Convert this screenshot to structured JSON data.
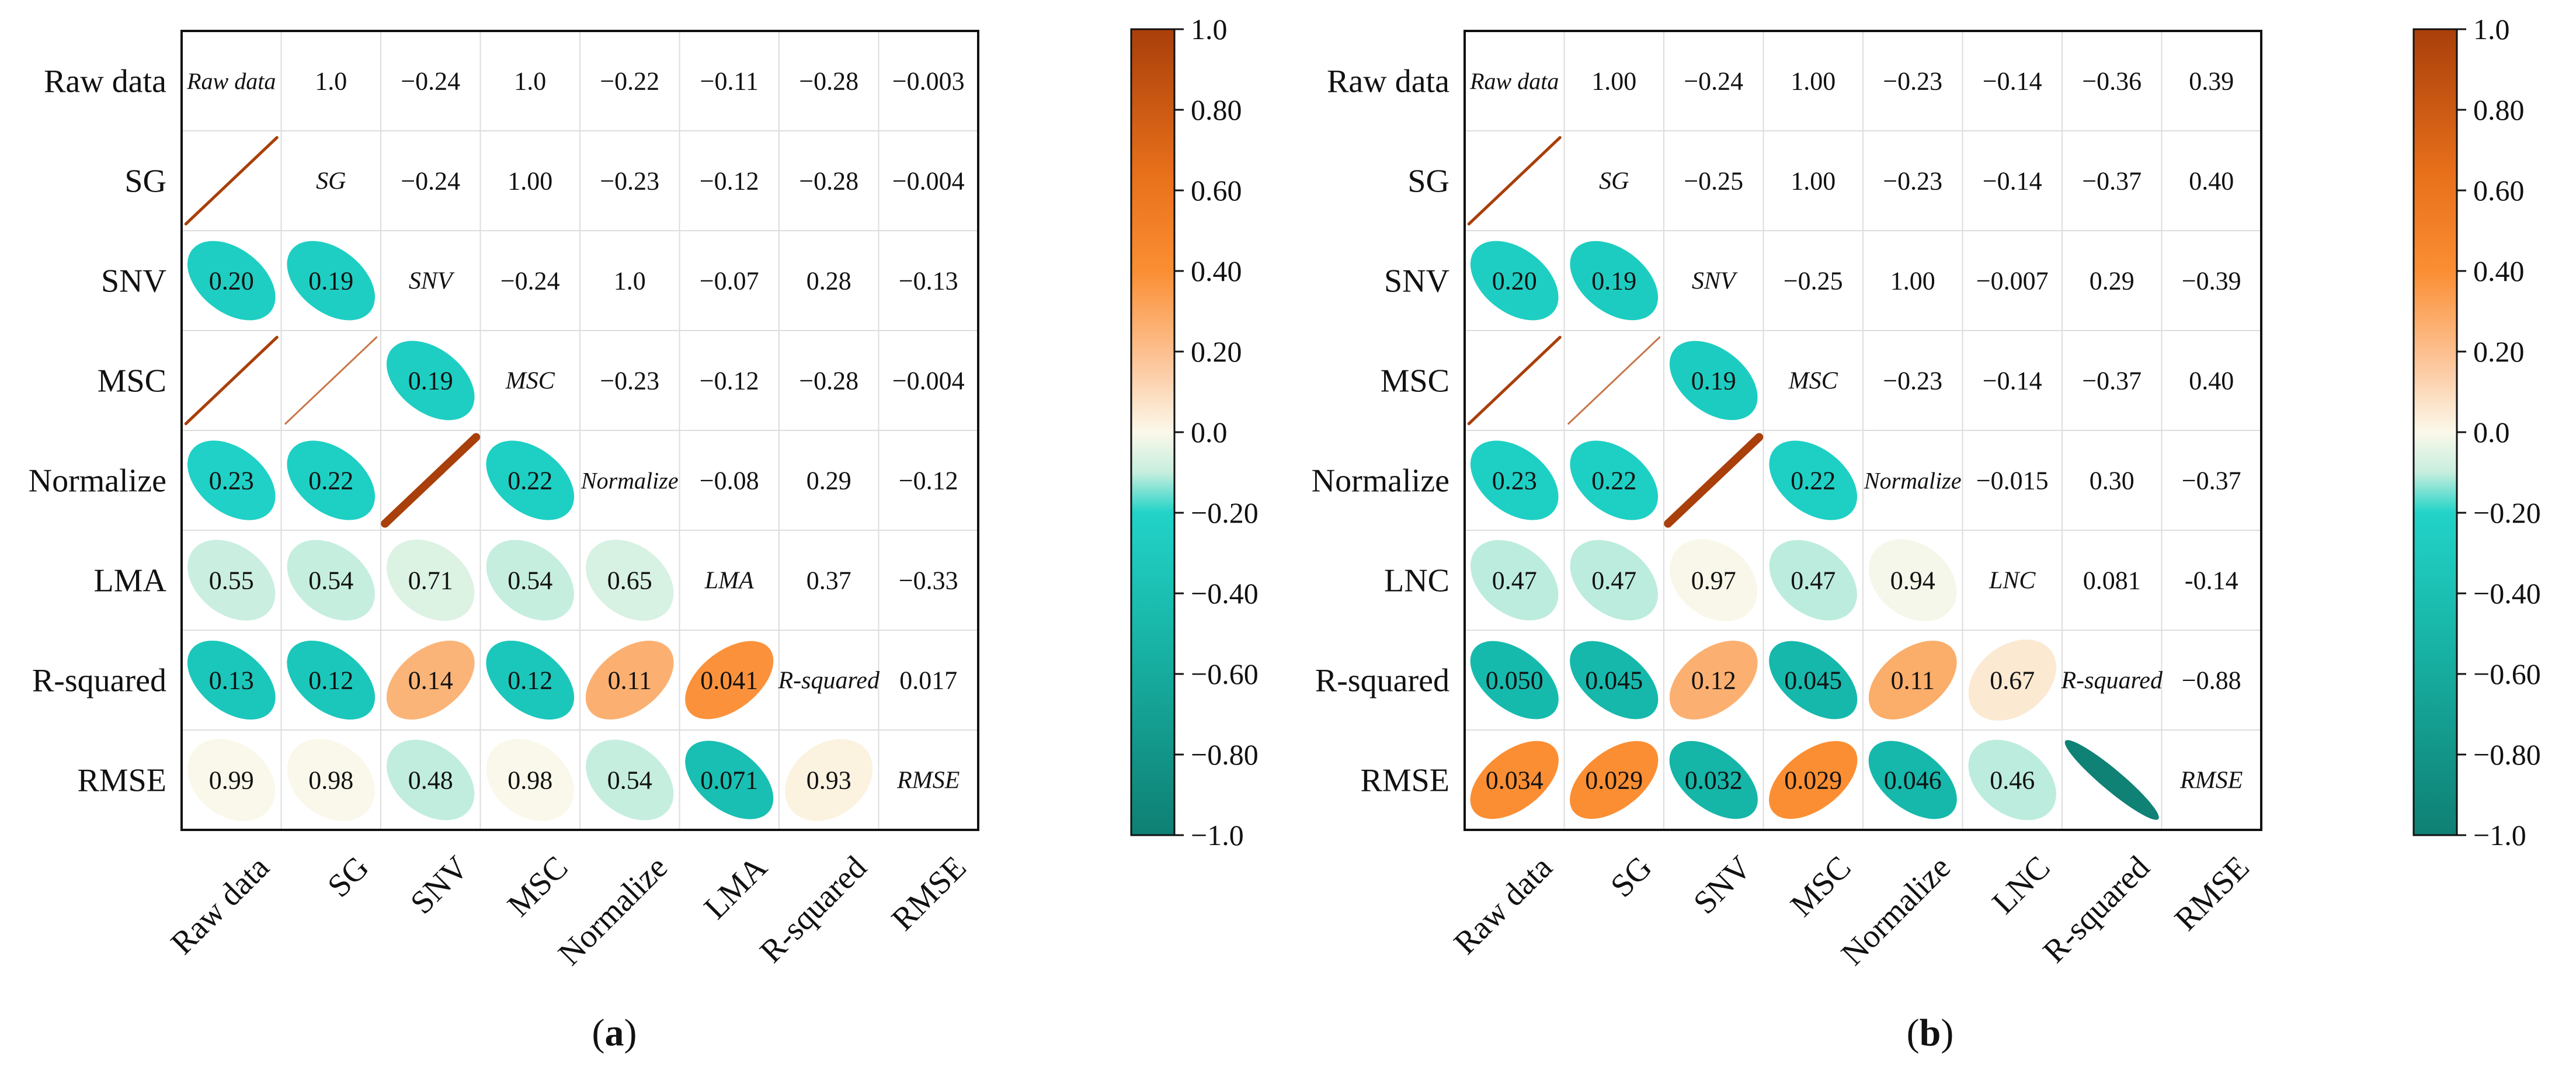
{
  "colors": {
    "neg_strong": "#0f7f73",
    "neg_mid": "#1fd1c6",
    "neg_light": "#b8ebdc",
    "neutral": "#fbf8ea",
    "pos_light": "#fbd2ae",
    "pos_mid": "#fb8e33",
    "pos_strong": "#a93f0a",
    "grid": "#dddddd",
    "frame": "#111111"
  },
  "chart_data": [
    {
      "type": "heatmap",
      "title": "",
      "caption_letter": "a",
      "labels": [
        "Raw data",
        "SG",
        "SNV",
        "MSC",
        "Normalize",
        "LMA",
        "R-squared",
        "RMSE"
      ],
      "colorbar": {
        "range": [
          -1.0,
          1.0
        ],
        "ticks": [
          "1.0",
          "0.80",
          "0.60",
          "0.40",
          "0.20",
          "0.0",
          "−0.20",
          "−0.40",
          "−0.60",
          "−0.80",
          "−1.0"
        ]
      },
      "diagonal": [
        "Raw data",
        "SG",
        "SNV",
        "MSC",
        "Normalize",
        "LMA",
        "R-squared",
        "RMSE"
      ],
      "upper": [
        [
          "1.0",
          "−0.24",
          "1.0",
          "−0.22",
          "−0.11",
          "−0.28",
          "−0.003"
        ],
        [
          "−0.24",
          "1.00",
          "−0.23",
          "−0.12",
          "−0.28",
          "−0.004"
        ],
        [
          "−0.24",
          "1.0",
          "−0.07",
          "0.28",
          "−0.13"
        ],
        [
          "−0.23",
          "−0.12",
          "−0.28",
          "−0.004"
        ],
        [
          "−0.08",
          "0.29",
          "−0.12"
        ],
        [
          "0.37",
          "−0.33"
        ],
        [
          "0.017"
        ]
      ],
      "lower": [
        [
          {
            "shape": "line",
            "value": 1.0
          }
        ],
        [
          {
            "r": 0.2,
            "label": "0.20",
            "value": -0.24
          },
          {
            "r": 0.19,
            "label": "0.19",
            "value": -0.24
          }
        ],
        [
          {
            "shape": "line",
            "value": 1.0
          },
          {
            "shape": "line",
            "value": 1.0,
            "thin": true
          },
          {
            "r": 0.19,
            "label": "0.19",
            "value": -0.24
          }
        ],
        [
          {
            "r": 0.23,
            "label": "0.23",
            "value": -0.22
          },
          {
            "r": 0.22,
            "label": "0.22",
            "value": -0.23
          },
          {
            "shape": "line",
            "value": 1.0,
            "thick": true
          },
          {
            "r": 0.22,
            "label": "0.22",
            "value": -0.23
          }
        ],
        [
          {
            "r": 0.55,
            "label": "0.55",
            "value": -0.11
          },
          {
            "r": 0.54,
            "label": "0.54",
            "value": -0.12
          },
          {
            "r": 0.71,
            "label": "0.71",
            "value": -0.07
          },
          {
            "r": 0.54,
            "label": "0.54",
            "value": -0.12
          },
          {
            "r": 0.65,
            "label": "0.65",
            "value": -0.08
          }
        ],
        [
          {
            "r": 0.13,
            "label": "0.13",
            "value": -0.28
          },
          {
            "r": 0.12,
            "label": "0.12",
            "value": -0.28
          },
          {
            "r": 0.14,
            "label": "0.14",
            "value": 0.28
          },
          {
            "r": 0.12,
            "label": "0.12",
            "value": -0.28
          },
          {
            "r": 0.11,
            "label": "0.11",
            "value": 0.29
          },
          {
            "r": 0.041,
            "label": "0.041",
            "value": 0.37
          }
        ],
        [
          {
            "r": 0.99,
            "label": "0.99",
            "value": -0.003
          },
          {
            "r": 0.98,
            "label": "0.98",
            "value": -0.004
          },
          {
            "r": 0.48,
            "label": "0.48",
            "value": -0.13
          },
          {
            "r": 0.98,
            "label": "0.98",
            "value": -0.004
          },
          {
            "r": 0.54,
            "label": "0.54",
            "value": -0.12
          },
          {
            "r": 0.071,
            "label": "0.071",
            "value": -0.33
          },
          {
            "r": 0.93,
            "label": "0.93",
            "value": 0.017
          }
        ]
      ]
    },
    {
      "type": "heatmap",
      "title": "",
      "caption_letter": "b",
      "labels": [
        "Raw data",
        "SG",
        "SNV",
        "MSC",
        "Normalize",
        "LNC",
        "R-squared",
        "RMSE"
      ],
      "colorbar": {
        "range": [
          -1.0,
          1.0
        ],
        "ticks": [
          "1.0",
          "0.80",
          "0.60",
          "0.40",
          "0.20",
          "0.0",
          "−0.20",
          "−0.40",
          "−0.60",
          "−0.80",
          "−1.0"
        ]
      },
      "diagonal": [
        "Raw data",
        "SG",
        "SNV",
        "MSC",
        "Normalize",
        "LNC",
        "R-squared",
        "RMSE"
      ],
      "upper": [
        [
          "1.00",
          "−0.24",
          "1.00",
          "−0.23",
          "−0.14",
          "−0.36",
          "0.39"
        ],
        [
          "−0.25",
          "1.00",
          "−0.23",
          "−0.14",
          "−0.37",
          "0.40"
        ],
        [
          "−0.25",
          "1.00",
          "−0.007",
          "0.29",
          "−0.39"
        ],
        [
          "−0.23",
          "−0.14",
          "−0.37",
          "0.40"
        ],
        [
          "−0.015",
          "0.30",
          "−0.37"
        ],
        [
          "0.081",
          "-0.14"
        ],
        [
          "−0.88"
        ]
      ],
      "lower": [
        [
          {
            "shape": "line",
            "value": 1.0
          }
        ],
        [
          {
            "r": 0.2,
            "label": "0.20",
            "value": -0.24
          },
          {
            "r": 0.19,
            "label": "0.19",
            "value": -0.25
          }
        ],
        [
          {
            "shape": "line",
            "value": 1.0
          },
          {
            "shape": "line",
            "value": 1.0,
            "thin": true
          },
          {
            "r": 0.19,
            "label": "0.19",
            "value": -0.25
          }
        ],
        [
          {
            "r": 0.23,
            "label": "0.23",
            "value": -0.23
          },
          {
            "r": 0.22,
            "label": "0.22",
            "value": -0.23
          },
          {
            "shape": "line",
            "value": 1.0,
            "thick": true
          },
          {
            "r": 0.22,
            "label": "0.22",
            "value": -0.23
          }
        ],
        [
          {
            "r": 0.47,
            "label": "0.47",
            "value": -0.14
          },
          {
            "r": 0.47,
            "label": "0.47",
            "value": -0.14
          },
          {
            "r": 0.97,
            "label": "0.97",
            "value": -0.007
          },
          {
            "r": 0.47,
            "label": "0.47",
            "value": -0.14
          },
          {
            "r": 0.94,
            "label": "0.94",
            "value": -0.015
          }
        ],
        [
          {
            "r": 0.05,
            "label": "0.050",
            "value": -0.36
          },
          {
            "r": 0.045,
            "label": "0.045",
            "value": -0.37
          },
          {
            "r": 0.12,
            "label": "0.12",
            "value": 0.29
          },
          {
            "r": 0.045,
            "label": "0.045",
            "value": -0.37
          },
          {
            "r": 0.11,
            "label": "0.11",
            "value": 0.3
          },
          {
            "r": 0.67,
            "label": "0.67",
            "value": 0.081
          }
        ],
        [
          {
            "r": 0.034,
            "label": "0.034",
            "value": 0.39
          },
          {
            "r": 0.029,
            "label": "0.029",
            "value": 0.4
          },
          {
            "r": 0.032,
            "label": "0.032",
            "value": -0.39
          },
          {
            "r": 0.029,
            "label": "0.029",
            "value": 0.4
          },
          {
            "r": 0.046,
            "label": "0.046",
            "value": -0.37
          },
          {
            "r": 0.46,
            "label": "0.46",
            "value": -0.14
          },
          {
            "shape": "narrow",
            "value": -0.88
          }
        ]
      ]
    }
  ]
}
